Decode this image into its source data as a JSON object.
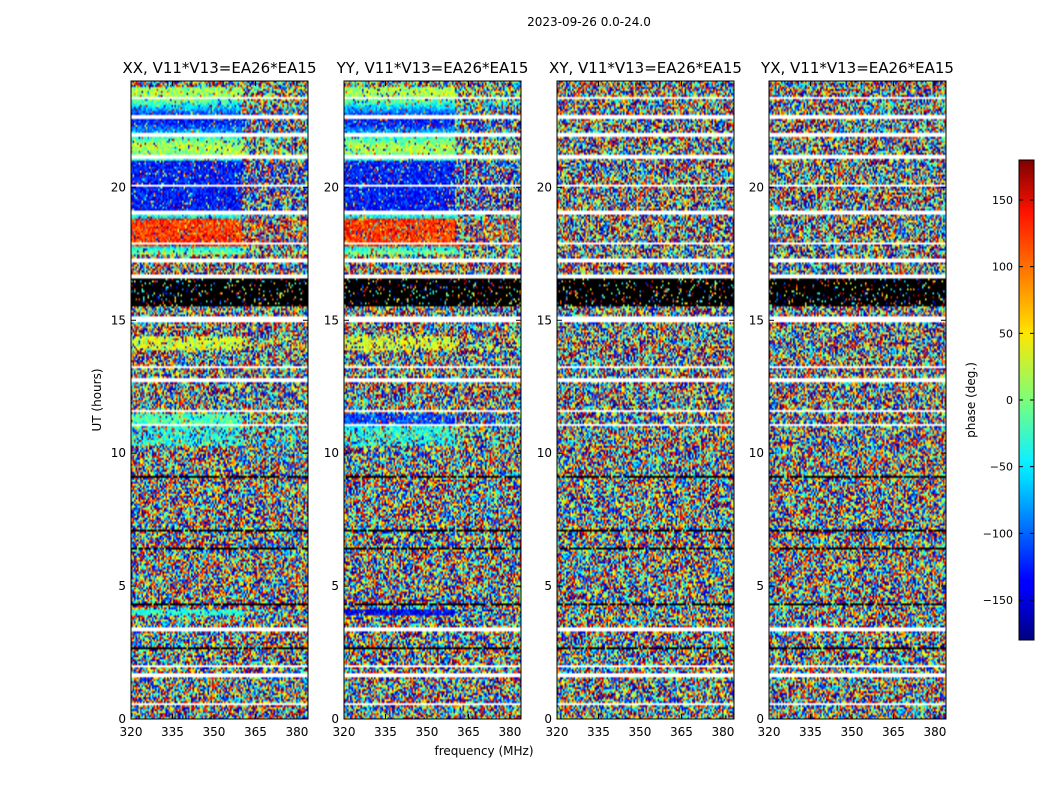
{
  "figure": {
    "suptitle": "2023-09-26 0.0-24.0",
    "xlabel": "frequency (MHz)",
    "ylabel": "UT (hours)"
  },
  "chart_data": {
    "type": "heatmap",
    "colormap": "jet",
    "xlim": [
      320,
      384
    ],
    "ylim": [
      0,
      24
    ],
    "x_ticks": [
      320,
      335,
      350,
      365,
      380
    ],
    "y_ticks": [
      0,
      5,
      10,
      15,
      20
    ],
    "panels": [
      {
        "title": "XX, V11*V13=EA26*EA15",
        "pol": "XX"
      },
      {
        "title": "YY, V11*V13=EA26*EA15",
        "pol": "YY"
      },
      {
        "title": "XY, V11*V13=EA26*EA15",
        "pol": "XY"
      },
      {
        "title": "YX, V11*V13=EA26*EA15",
        "pol": "YX"
      }
    ],
    "flagged_white_hours": [
      [
        0.55,
        0.62
      ],
      [
        1.6,
        1.72
      ],
      [
        1.95,
        2.0
      ],
      [
        3.3,
        3.42
      ],
      [
        11.0,
        11.1
      ],
      [
        11.55,
        11.65
      ],
      [
        12.7,
        12.85
      ],
      [
        13.2,
        13.3
      ],
      [
        14.95,
        15.15
      ],
      [
        16.6,
        16.7
      ],
      [
        17.2,
        17.3
      ],
      [
        17.85,
        17.95
      ],
      [
        19.0,
        19.1
      ],
      [
        20.0,
        20.1
      ],
      [
        21.1,
        21.25
      ],
      [
        21.9,
        22.05
      ],
      [
        22.6,
        22.7
      ],
      [
        23.3,
        23.4
      ]
    ],
    "flagged_black_hours": [
      [
        0.95,
        1.0
      ],
      [
        1.4,
        1.45
      ],
      [
        2.3,
        2.35
      ],
      [
        2.65,
        2.7
      ],
      [
        4.3,
        4.35
      ],
      [
        5.45,
        5.5
      ],
      [
        6.4,
        6.45
      ],
      [
        7.05,
        7.1
      ],
      [
        7.4,
        7.45
      ],
      [
        8.0,
        8.05
      ],
      [
        8.6,
        8.65
      ],
      [
        9.1,
        9.15
      ],
      [
        9.65,
        9.7
      ],
      [
        13.7,
        13.75
      ],
      [
        15.55,
        16.6
      ]
    ],
    "colorbar": {
      "label": "phase (deg.)",
      "range": [
        -180,
        180
      ],
      "ticks": [
        -150,
        -100,
        -50,
        0,
        50,
        100,
        150
      ],
      "tick_labels": [
        "−150",
        "−100",
        "−50",
        "0",
        "50",
        "100",
        "150"
      ]
    }
  }
}
